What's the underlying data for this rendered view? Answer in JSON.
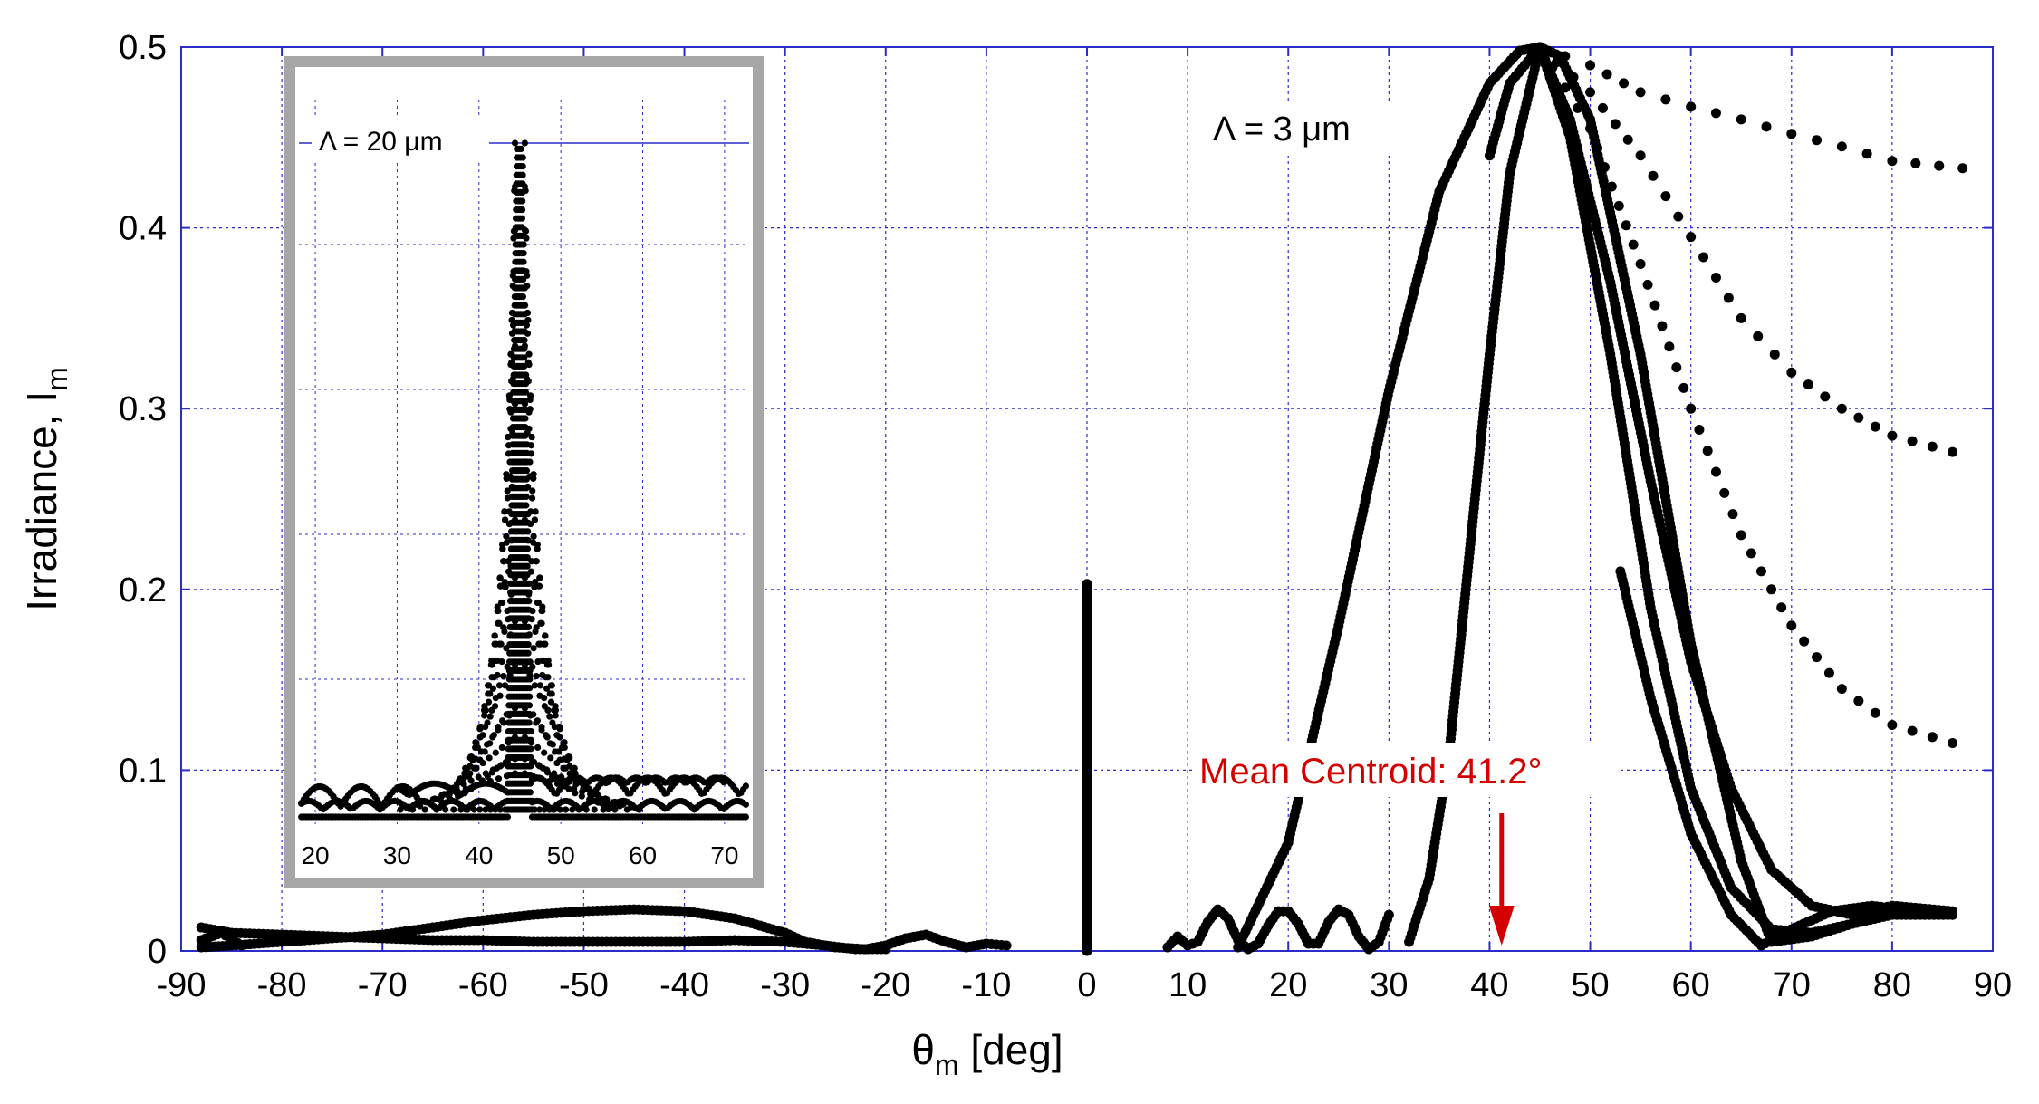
{
  "colors": {
    "grid": "#2b2bc8",
    "marker": "#000000",
    "accent": "#d40000",
    "inset_border": "#a6a6a6"
  },
  "chart_data": [
    {
      "type": "scatter",
      "xlabel_symbol": "θ",
      "xlabel_sub": "m",
      "xlabel_rest": " [deg]",
      "ylabel_main": "Irradiance, I",
      "ylabel_sub": "m",
      "xlim": [
        -90,
        90
      ],
      "ylim": [
        0,
        0.5
      ],
      "x_ticks": [
        "-90",
        "-80",
        "-70",
        "-60",
        "-50",
        "-40",
        "-30",
        "-20",
        "-10",
        "0",
        "10",
        "20",
        "30",
        "40",
        "50",
        "60",
        "70",
        "80",
        "90"
      ],
      "y_ticks": [
        "0",
        "0.1",
        "0.2",
        "0.3",
        "0.4",
        "0.5"
      ],
      "grid": true,
      "annotation_period": "Λ = 3 μm",
      "annotation_centroid": "Mean Centroid: 41.2°",
      "centroid_x": 41.2,
      "series": [
        {
          "x": [
            45,
            50,
            55,
            60,
            65,
            70,
            75,
            80,
            87
          ],
          "y": [
            0.5,
            0.49,
            0.475,
            0.467,
            0.46,
            0.452,
            0.445,
            0.437,
            0.433
          ]
        },
        {
          "x": [
            45,
            50,
            55,
            60,
            65,
            70,
            75,
            80,
            86
          ],
          "y": [
            0.5,
            0.475,
            0.44,
            0.395,
            0.35,
            0.32,
            0.3,
            0.285,
            0.276
          ]
        },
        {
          "x": [
            45,
            50,
            55,
            60,
            65,
            70,
            75,
            80,
            86
          ],
          "y": [
            0.5,
            0.455,
            0.38,
            0.3,
            0.23,
            0.18,
            0.145,
            0.125,
            0.115
          ]
        },
        {
          "x": [
            40,
            42,
            45,
            48,
            52,
            56,
            60,
            64,
            68,
            72,
            76,
            80,
            86
          ],
          "y": [
            0.44,
            0.48,
            0.5,
            0.46,
            0.37,
            0.26,
            0.16,
            0.09,
            0.045,
            0.025,
            0.02,
            0.025,
            0.022
          ]
        },
        {
          "x": [
            32,
            34,
            36,
            38,
            40,
            42,
            45,
            48,
            52,
            56,
            60,
            64,
            68,
            72,
            76,
            80,
            86
          ],
          "y": [
            0.005,
            0.04,
            0.11,
            0.22,
            0.33,
            0.43,
            0.5,
            0.45,
            0.33,
            0.19,
            0.09,
            0.035,
            0.012,
            0.01,
            0.015,
            0.02,
            0.02
          ]
        },
        {
          "x": [
            53,
            56,
            60,
            64,
            67,
            70,
            74,
            78,
            82,
            86
          ],
          "y": [
            0.21,
            0.14,
            0.065,
            0.02,
            0.003,
            0.012,
            0.022,
            0.025,
            0.022,
            0.02
          ]
        },
        {
          "x": [
            15,
            20,
            25,
            30,
            35,
            40,
            43,
            45,
            47,
            50,
            55,
            60,
            65,
            68,
            72,
            76,
            80,
            86
          ],
          "y": [
            0.002,
            0.06,
            0.18,
            0.31,
            0.42,
            0.48,
            0.498,
            0.5,
            0.495,
            0.46,
            0.33,
            0.17,
            0.05,
            0.005,
            0.008,
            0.015,
            0.02,
            0.02
          ]
        },
        {
          "x": [
            8,
            9,
            10,
            11,
            12,
            13,
            14,
            15,
            16,
            17,
            18,
            19,
            20,
            21,
            22,
            23,
            24,
            25,
            26,
            27,
            28,
            29,
            30
          ],
          "y": [
            0.002,
            0.008,
            0.003,
            0.005,
            0.016,
            0.023,
            0.018,
            0.006,
            0.001,
            0.004,
            0.014,
            0.022,
            0.022,
            0.015,
            0.004,
            0.004,
            0.016,
            0.023,
            0.02,
            0.008,
            0.001,
            0.005,
            0.02
          ]
        },
        {
          "x": [
            0,
            0,
            0,
            0,
            0,
            0,
            0,
            0,
            0
          ],
          "y": [
            0,
            0.025,
            0.05,
            0.075,
            0.1,
            0.125,
            0.15,
            0.175,
            0.203
          ]
        },
        {
          "x": [
            -88,
            -85,
            -80,
            -75,
            -70,
            -65,
            -60,
            -55,
            -50,
            -45,
            -40,
            -35,
            -30,
            -28,
            -25,
            -22,
            -20,
            -18,
            -16,
            -14,
            -12,
            -10,
            -8
          ],
          "y": [
            0.002,
            0.003,
            0.005,
            0.007,
            0.009,
            0.013,
            0.017,
            0.02,
            0.022,
            0.023,
            0.022,
            0.018,
            0.01,
            0.005,
            0.002,
            0.001,
            0.003,
            0.007,
            0.009,
            0.005,
            0.002,
            0.004,
            0.003
          ]
        },
        {
          "x": [
            -88,
            -85,
            -80,
            -75,
            -70,
            -65,
            -60,
            -55,
            -50,
            -45,
            -40,
            -35,
            -30,
            -26,
            -23,
            -20
          ],
          "y": [
            0.013,
            0.01,
            0.009,
            0.008,
            0.007,
            0.006,
            0.006,
            0.005,
            0.005,
            0.005,
            0.005,
            0.006,
            0.005,
            0.003,
            0.001,
            0.001
          ]
        },
        {
          "x": [
            -88,
            -86,
            -84
          ],
          "y": [
            0.006,
            0.01,
            0.003
          ]
        }
      ]
    },
    {
      "type": "scatter",
      "inset": true,
      "xlim": [
        18,
        73
      ],
      "ylim": [
        0,
        0.5
      ],
      "x_ticks": [
        "20",
        "30",
        "40",
        "50",
        "60",
        "70"
      ],
      "grid": true,
      "annotation_period": "Λ = 20 μm",
      "peak_x": 45,
      "peak_y": 0.47,
      "baseline": 0.01,
      "fan_heights": [
        0.47,
        0.44,
        0.41,
        0.37,
        0.33,
        0.29,
        0.25,
        0.21,
        0.17,
        0.14,
        0.11,
        0.08,
        0.06,
        0.045,
        0.035
      ],
      "fan_widths_left": [
        1.2,
        1.8,
        2.4,
        3.0,
        3.6,
        4.3,
        5.0,
        5.8,
        6.6,
        7.5,
        8.5,
        9.6,
        11,
        12.5,
        14
      ],
      "fan_widths_right": [
        1.2,
        1.8,
        2.4,
        3.0,
        3.6,
        4.3,
        5.0,
        5.8,
        6.6,
        7.5,
        8.5,
        9.6,
        11,
        12.5,
        14
      ],
      "baseline_level": 0.035
    }
  ]
}
